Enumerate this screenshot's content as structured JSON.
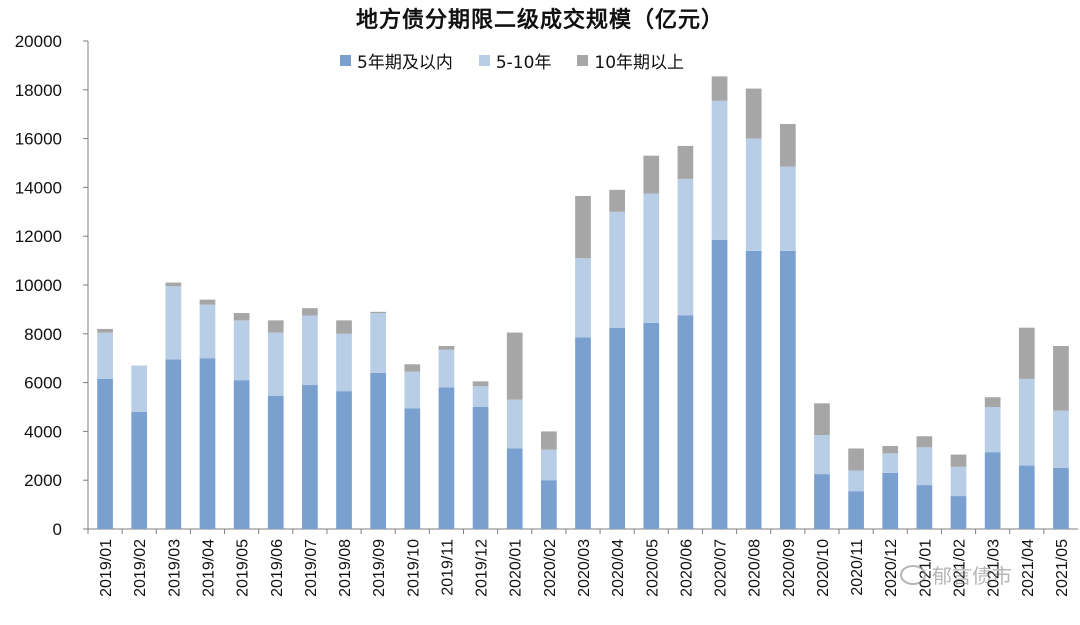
{
  "colors": {
    "s1": "#7aa0cf",
    "s2": "#b8cde6",
    "s3": "#a6a6a6",
    "axis": "#7f7f7f",
    "text": "#111111"
  },
  "watermark": {
    "text": "郁言债市",
    "icon": "wechat-icon"
  },
  "chart_data": {
    "type": "bar",
    "stacked": true,
    "title": "地方债分期限二级成交规模（亿元）",
    "legend_position": "top",
    "grid": false,
    "ylim": [
      0,
      20000
    ],
    "yticks": [
      "0",
      "2000",
      "4000",
      "6000",
      "8000",
      "10000",
      "12000",
      "14000",
      "16000",
      "18000",
      "20000"
    ],
    "categories": [
      "2019/01",
      "2019/02",
      "2019/03",
      "2019/04",
      "2019/05",
      "2019/06",
      "2019/07",
      "2019/08",
      "2019/09",
      "2019/10",
      "2019/11",
      "2019/12",
      "2020/01",
      "2020/02",
      "2020/03",
      "2020/04",
      "2020/05",
      "2020/06",
      "2020/07",
      "2020/08",
      "2020/09",
      "2020/10",
      "2020/11",
      "2020/12",
      "2021/01",
      "2021/02",
      "2021/03",
      "2021/04",
      "2021/05"
    ],
    "series": [
      {
        "name": "5年期及以内",
        "values": [
          6150,
          4800,
          6950,
          7000,
          6100,
          5450,
          5900,
          5650,
          6400,
          4950,
          5800,
          5000,
          3300,
          2000,
          7850,
          8250,
          8450,
          8750,
          11850,
          11400,
          11400,
          2250,
          1550,
          2300,
          1800,
          1350,
          3150,
          2600,
          2500
        ]
      },
      {
        "name": "5-10年",
        "values": [
          1900,
          1900,
          3000,
          2200,
          2450,
          2600,
          2850,
          2350,
          2450,
          1500,
          1550,
          850,
          2000,
          1250,
          3250,
          4750,
          5300,
          5600,
          5700,
          4600,
          3450,
          1600,
          850,
          800,
          1550,
          1200,
          1850,
          3550,
          2350
        ]
      },
      {
        "name": "10年期以上",
        "values": [
          150,
          0,
          150,
          200,
          300,
          500,
          300,
          550,
          50,
          300,
          150,
          200,
          2750,
          750,
          2550,
          900,
          1550,
          1350,
          1000,
          2050,
          1750,
          1300,
          900,
          300,
          450,
          500,
          400,
          2100,
          2650
        ]
      }
    ]
  }
}
